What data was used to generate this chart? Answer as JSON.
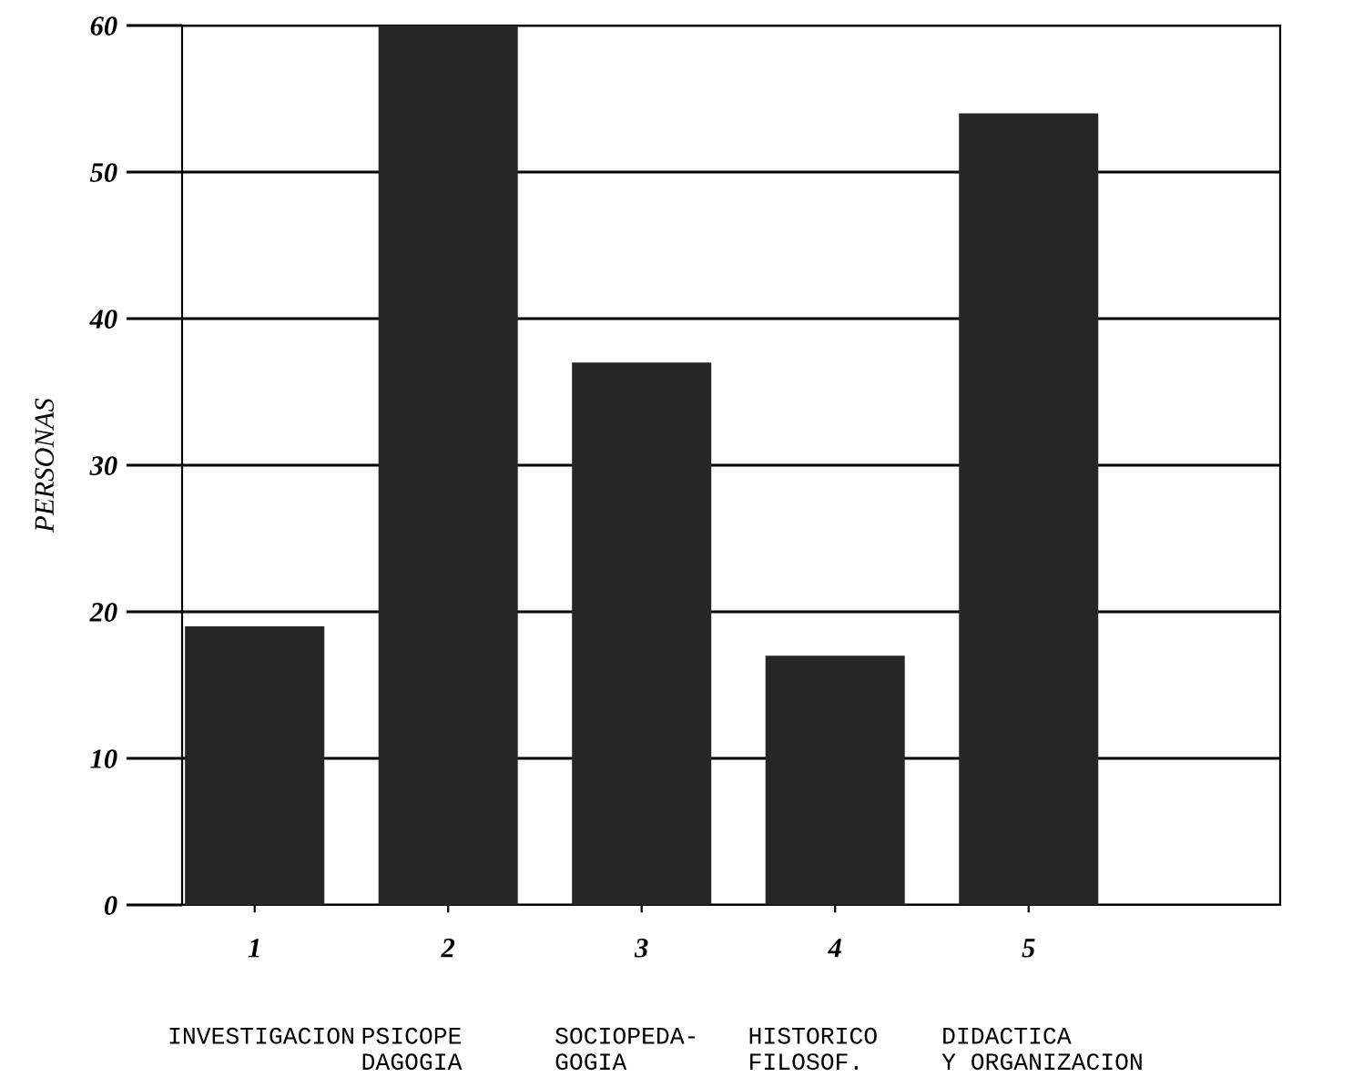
{
  "chart_data": {
    "type": "bar",
    "categories": [
      "1",
      "2",
      "3",
      "4",
      "5"
    ],
    "values": [
      19,
      60,
      37,
      17,
      54
    ],
    "color": "#262626",
    "ylabel": "PERSONAS",
    "ylim": [
      0,
      60
    ],
    "yticks": [
      0,
      10,
      20,
      30,
      40,
      50,
      60
    ],
    "grid": "y",
    "legend": false,
    "annotations": [
      "INVESTIGACION",
      "PSICOPE\nDAGOGIA",
      "SOCIOPEDA-\nGOGIA",
      "HISTORICO\nFILOSOF.",
      "DIDACTICA\nY ORGANIZACION"
    ]
  }
}
